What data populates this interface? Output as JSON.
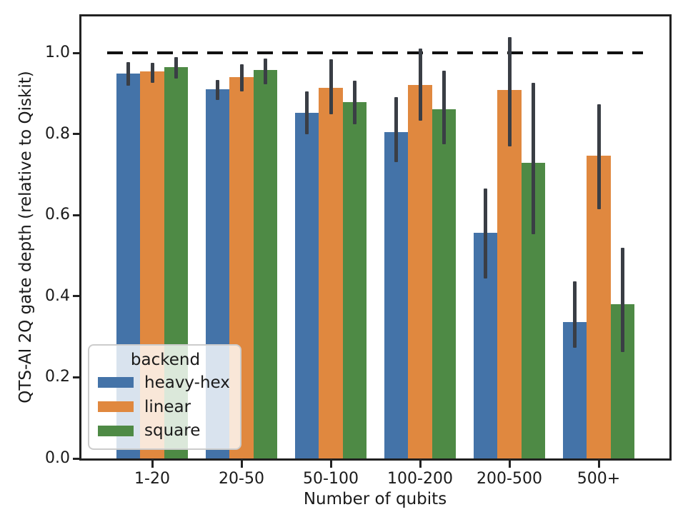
{
  "chart_data": {
    "type": "bar",
    "title": "",
    "xlabel": "Number of qubits",
    "ylabel": "QTS-AI 2Q gate depth (relative to Qiskit)",
    "categories": [
      "1-20",
      "20-50",
      "50-100",
      "100-200",
      "200-500",
      "500+"
    ],
    "series": [
      {
        "name": "heavy-hex",
        "color": "#4473a8",
        "values": [
          0.95,
          0.91,
          0.852,
          0.805,
          0.556,
          0.337
        ],
        "err_low": [
          0.919,
          0.884,
          0.8,
          0.731,
          0.443,
          0.272
        ],
        "err_high": [
          0.977,
          0.933,
          0.905,
          0.891,
          0.666,
          0.436
        ]
      },
      {
        "name": "linear",
        "color": "#e0883f",
        "values": [
          0.954,
          0.94,
          0.914,
          0.921,
          0.909,
          0.747
        ],
        "err_low": [
          0.926,
          0.905,
          0.849,
          0.833,
          0.77,
          0.615
        ],
        "err_high": [
          0.975,
          0.972,
          0.984,
          1.01,
          1.039,
          0.874
        ]
      },
      {
        "name": "square",
        "color": "#4e8a45",
        "values": [
          0.965,
          0.958,
          0.879,
          0.861,
          0.729,
          0.381
        ],
        "err_low": [
          0.937,
          0.923,
          0.824,
          0.775,
          0.552,
          0.262
        ],
        "err_high": [
          0.99,
          0.986,
          0.932,
          0.956,
          0.926,
          0.519
        ]
      }
    ],
    "error_bar_color": "#3a3e45",
    "yticks": [
      0.0,
      0.2,
      0.4,
      0.6,
      0.8,
      1.0
    ],
    "ytick_labels": [
      "0.0",
      "0.2",
      "0.4",
      "0.6",
      "0.8",
      "1.0"
    ],
    "ylim": [
      0,
      1.09
    ],
    "grid": false,
    "reference_line": {
      "y": 1.0,
      "style": "dashed",
      "color": "#111111"
    },
    "legend": {
      "title": "backend",
      "position": "lower-left"
    },
    "axis_color": "#222222",
    "text_color": "#1a1a1a"
  }
}
